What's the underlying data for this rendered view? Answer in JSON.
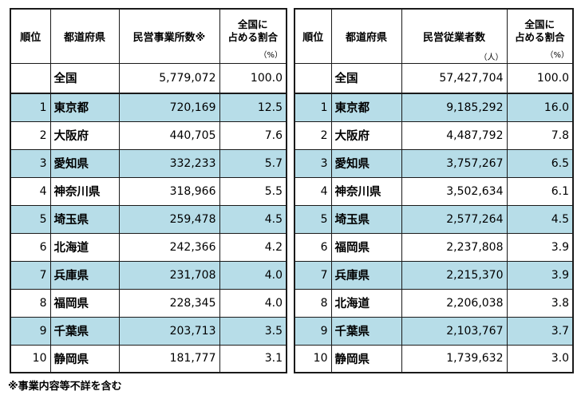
{
  "left_table": {
    "headers": {
      "rank": "順位",
      "prefecture": "都道府県",
      "value": "民営事業所数※",
      "value_unit": "",
      "share_line1": "全国に",
      "share_line2": "占める割合",
      "share_unit": "（%）"
    },
    "national": {
      "rank": "",
      "prefecture": "全国",
      "value": "5,779,072",
      "share": "100.0"
    },
    "rows": [
      {
        "rank": "1",
        "prefecture": "東京都",
        "value": "720,169",
        "share": "12.5"
      },
      {
        "rank": "2",
        "prefecture": "大阪府",
        "value": "440,705",
        "share": "7.6"
      },
      {
        "rank": "3",
        "prefecture": "愛知県",
        "value": "332,233",
        "share": "5.7"
      },
      {
        "rank": "4",
        "prefecture": "神奈川県",
        "value": "318,966",
        "share": "5.5"
      },
      {
        "rank": "5",
        "prefecture": "埼玉県",
        "value": "259,478",
        "share": "4.5"
      },
      {
        "rank": "6",
        "prefecture": "北海道",
        "value": "242,366",
        "share": "4.2"
      },
      {
        "rank": "7",
        "prefecture": "兵庫県",
        "value": "231,708",
        "share": "4.0"
      },
      {
        "rank": "8",
        "prefecture": "福岡県",
        "value": "228,345",
        "share": "4.0"
      },
      {
        "rank": "9",
        "prefecture": "千葉県",
        "value": "203,713",
        "share": "3.5"
      },
      {
        "rank": "10",
        "prefecture": "静岡県",
        "value": "181,777",
        "share": "3.1"
      }
    ]
  },
  "right_table": {
    "headers": {
      "rank": "順位",
      "prefecture": "都道府県",
      "value": "民営従業者数",
      "value_unit": "（人）",
      "share_line1": "全国に",
      "share_line2": "占める割合",
      "share_unit": "（%）"
    },
    "national": {
      "rank": "",
      "prefecture": "全国",
      "value": "57,427,704",
      "share": "100.0"
    },
    "rows": [
      {
        "rank": "1",
        "prefecture": "東京都",
        "value": "9,185,292",
        "share": "16.0"
      },
      {
        "rank": "2",
        "prefecture": "大阪府",
        "value": "4,487,792",
        "share": "7.8"
      },
      {
        "rank": "3",
        "prefecture": "愛知県",
        "value": "3,757,267",
        "share": "6.5"
      },
      {
        "rank": "4",
        "prefecture": "神奈川県",
        "value": "3,502,634",
        "share": "6.1"
      },
      {
        "rank": "5",
        "prefecture": "埼玉県",
        "value": "2,577,264",
        "share": "4.5"
      },
      {
        "rank": "6",
        "prefecture": "福岡県",
        "value": "2,237,808",
        "share": "3.9"
      },
      {
        "rank": "7",
        "prefecture": "兵庫県",
        "value": "2,215,370",
        "share": "3.9"
      },
      {
        "rank": "8",
        "prefecture": "北海道",
        "value": "2,206,038",
        "share": "3.8"
      },
      {
        "rank": "9",
        "prefecture": "千葉県",
        "value": "2,103,767",
        "share": "3.7"
      },
      {
        "rank": "10",
        "prefecture": "静岡県",
        "value": "1,739,632",
        "share": "3.0"
      }
    ]
  },
  "footnote": "※事業内容等不詳を含む",
  "colors": {
    "shade_row": "#b7dde8",
    "border": "#1a1a1a"
  }
}
